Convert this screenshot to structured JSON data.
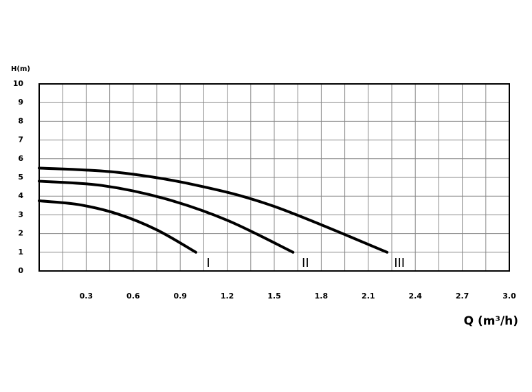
{
  "chart_data": {
    "type": "line",
    "ylabel": "H(m)",
    "xlabel": "Q (m³/h)",
    "xlim": [
      0,
      3
    ],
    "ylim": [
      0,
      10
    ],
    "xticks": [
      0.3,
      0.6,
      0.9,
      1.2,
      1.5,
      1.8,
      2.1,
      2.4,
      2.7,
      {
        "value": 3,
        "label": "3.0"
      }
    ],
    "x_minor_grid": [
      0.15,
      0.45,
      0.75,
      1.05,
      1.35,
      1.65,
      1.95,
      2.25,
      2.55,
      2.85
    ],
    "yticks": [
      0,
      1,
      2,
      3,
      4,
      5,
      6,
      7,
      8,
      9,
      10
    ],
    "grid": true,
    "series": [
      {
        "name": "I",
        "color": "#000000",
        "x": [
          0,
          0.25,
          0.5,
          0.75,
          1.0
        ],
        "values": [
          3.75,
          3.55,
          3.05,
          2.2,
          1.0
        ]
      },
      {
        "name": "II",
        "color": "#000000",
        "x": [
          0,
          0.4,
          0.8,
          1.2,
          1.62
        ],
        "values": [
          4.8,
          4.57,
          3.87,
          2.71,
          1.0
        ]
      },
      {
        "name": "III",
        "color": "#000000",
        "x": [
          0,
          0.5,
          1.0,
          1.5,
          2.22
        ],
        "values": [
          5.5,
          5.27,
          4.59,
          3.45,
          1.0
        ]
      }
    ]
  }
}
